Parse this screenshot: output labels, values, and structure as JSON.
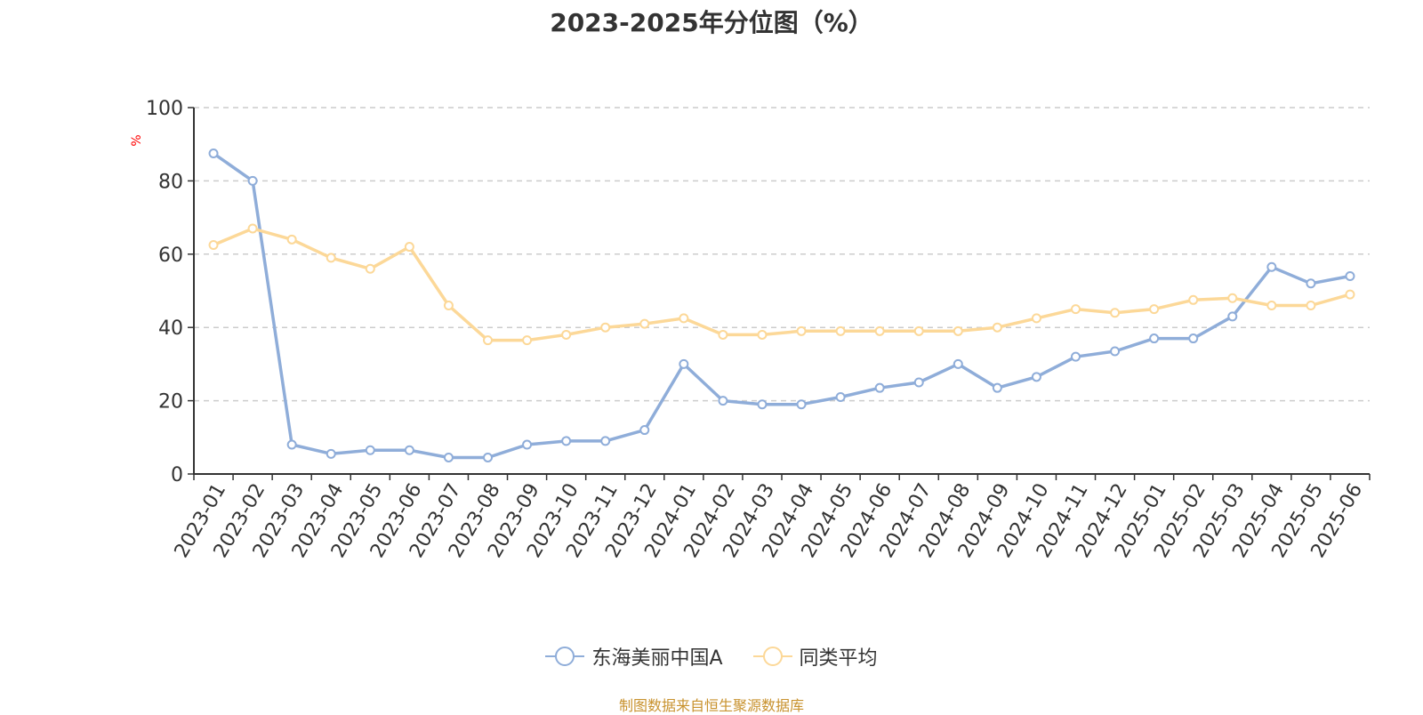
{
  "chart_data": {
    "type": "line",
    "title": "2023-2025年分位图（%）",
    "ylabel": "%",
    "ylim": [
      0,
      100
    ],
    "yticks": [
      0,
      20,
      40,
      60,
      80,
      100
    ],
    "grid": "horizontal-dashed",
    "legend_position": "bottom-center",
    "categories": [
      "2023-01",
      "2023-02",
      "2023-03",
      "2023-04",
      "2023-05",
      "2023-06",
      "2023-07",
      "2023-08",
      "2023-09",
      "2023-10",
      "2023-11",
      "2023-12",
      "2024-01",
      "2024-02",
      "2024-03",
      "2024-04",
      "2024-05",
      "2024-06",
      "2024-07",
      "2024-08",
      "2024-09",
      "2024-10",
      "2024-11",
      "2024-12",
      "2025-01",
      "2025-02",
      "2025-03",
      "2025-04",
      "2025-05",
      "2025-06"
    ],
    "series": [
      {
        "name": "东海美丽中国A",
        "color": "#8fadd9",
        "values": [
          87.5,
          80,
          8,
          5.5,
          6.5,
          6.5,
          4.5,
          4.5,
          8,
          9,
          9,
          12,
          30,
          20,
          19,
          19,
          21,
          23.5,
          25,
          30,
          23.5,
          26.5,
          32,
          33.5,
          37,
          37,
          43,
          56.5,
          52,
          54
        ]
      },
      {
        "name": "同类平均",
        "color": "#fcd898",
        "values": [
          62.5,
          67,
          64,
          59,
          56,
          62,
          46,
          36.5,
          36.5,
          38,
          40,
          41,
          42.5,
          38,
          38,
          39,
          39,
          39,
          39,
          39,
          40,
          42.5,
          45,
          44,
          45,
          47.5,
          48,
          46,
          46,
          49
        ]
      }
    ]
  },
  "source": "制图数据来自恒生聚源数据库"
}
